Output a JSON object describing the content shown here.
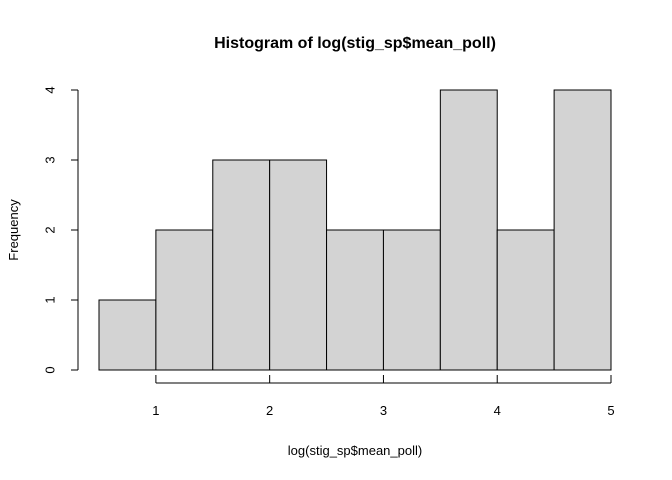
{
  "chart_data": {
    "type": "bar",
    "title": "Histogram of log(stig_sp$mean_poll)",
    "xlabel": "log(stig_sp$mean_poll)",
    "ylabel": "Frequency",
    "bins": [
      {
        "start": 0.5,
        "end": 1.0,
        "count": 1
      },
      {
        "start": 1.0,
        "end": 1.5,
        "count": 2
      },
      {
        "start": 1.5,
        "end": 2.0,
        "count": 3
      },
      {
        "start": 2.0,
        "end": 2.5,
        "count": 3
      },
      {
        "start": 2.5,
        "end": 3.0,
        "count": 2
      },
      {
        "start": 3.0,
        "end": 3.5,
        "count": 2
      },
      {
        "start": 3.5,
        "end": 4.0,
        "count": 4
      },
      {
        "start": 4.0,
        "end": 4.5,
        "count": 2
      },
      {
        "start": 4.5,
        "end": 5.0,
        "count": 4
      }
    ],
    "xticks": [
      "1",
      "2",
      "3",
      "4",
      "5"
    ],
    "yticks": [
      "0",
      "1",
      "2",
      "3",
      "4"
    ],
    "xlim": [
      0.5,
      5.0
    ],
    "ylim": [
      0,
      4
    ],
    "grid": false,
    "colors": {
      "bar_fill": "#d3d3d3",
      "bar_stroke": "#000000"
    }
  }
}
